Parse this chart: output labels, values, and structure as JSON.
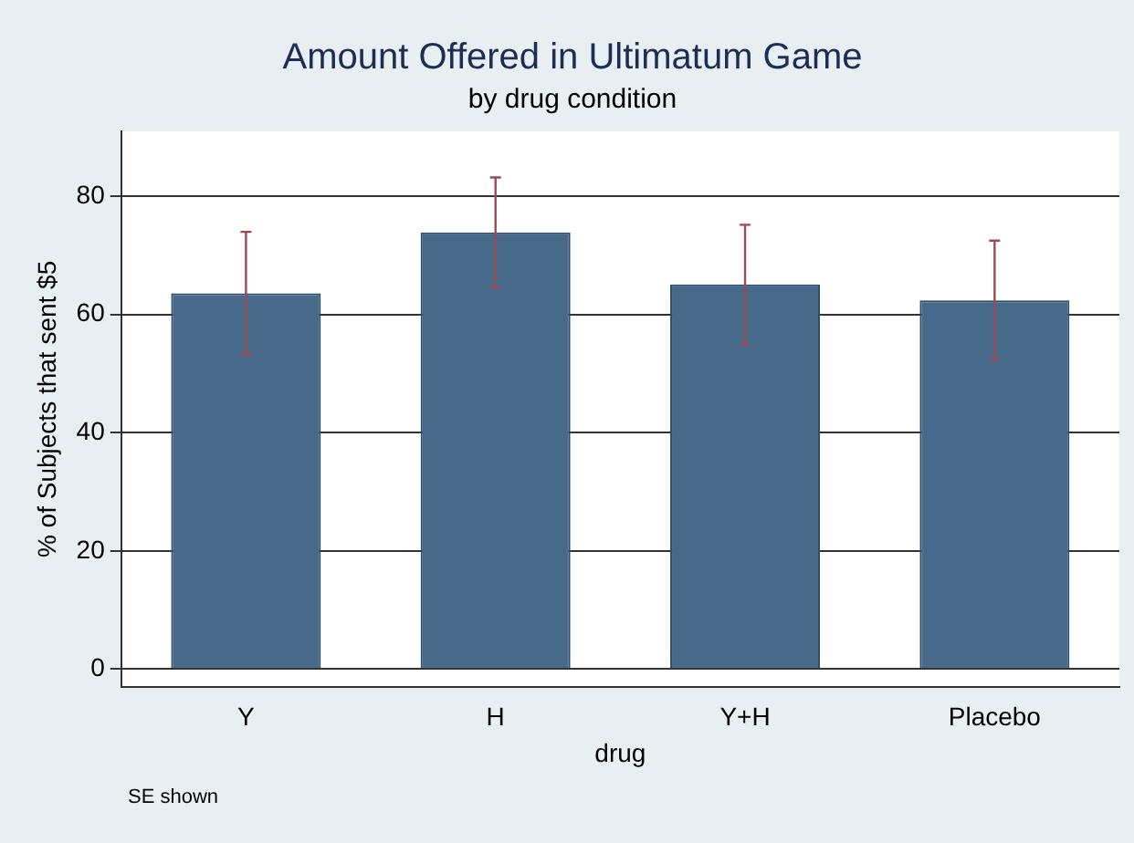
{
  "chart_data": {
    "type": "bar",
    "title": "Amount Offered in Ultimatum Game",
    "subtitle": "by drug condition",
    "xlabel": "drug",
    "ylabel": "% of Subjects that sent $5",
    "categories": [
      "Y",
      "H",
      "Y+H",
      "Placebo"
    ],
    "values": [
      63.6,
      73.9,
      65.1,
      62.4
    ],
    "errors": [
      [
        53.2,
        74.0
      ],
      [
        64.5,
        83.2
      ],
      [
        55.0,
        75.2
      ],
      [
        52.3,
        72.5
      ]
    ],
    "color": "#476a8b",
    "ylim": [
      -3,
      91
    ],
    "yticks": [
      0,
      20,
      40,
      60,
      80
    ],
    "grid": "y",
    "legend": false,
    "annotations": [
      "SE shown"
    ]
  }
}
